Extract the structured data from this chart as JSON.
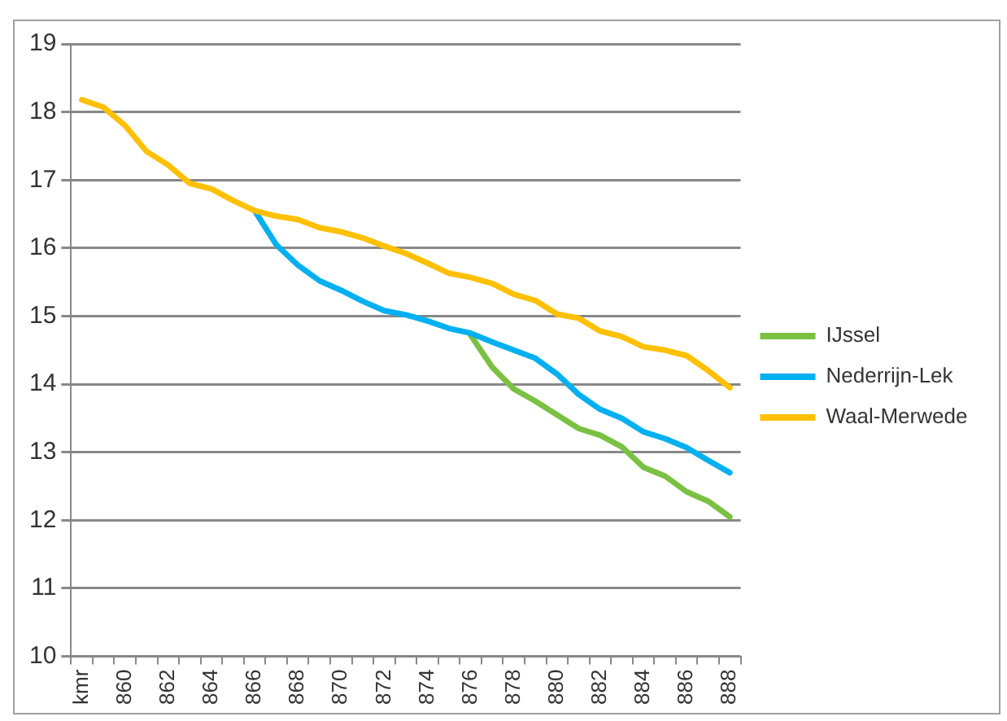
{
  "chart_data": {
    "type": "line",
    "categories": [
      "kmr",
      null,
      "860",
      null,
      "862",
      null,
      "864",
      null,
      "866",
      null,
      "868",
      null,
      "870",
      null,
      "872",
      null,
      "874",
      null,
      "876",
      null,
      "878",
      null,
      "880",
      null,
      "882",
      null,
      "884",
      null,
      "886",
      null,
      "888"
    ],
    "series": [
      {
        "name": "IJssel",
        "color": "#7ac143",
        "values": [
          null,
          null,
          null,
          null,
          null,
          null,
          null,
          null,
          null,
          null,
          null,
          null,
          null,
          null,
          null,
          null,
          null,
          null,
          14.72,
          14.25,
          13.93,
          13.75,
          13.55,
          13.35,
          13.25,
          13.08,
          12.78,
          12.65,
          12.42,
          12.28,
          12.05
        ]
      },
      {
        "name": "Nederrijn-Lek",
        "color": "#00b0f0",
        "values": [
          null,
          null,
          null,
          null,
          null,
          null,
          null,
          null,
          16.55,
          16.05,
          15.75,
          15.52,
          15.38,
          15.22,
          15.08,
          15.02,
          14.93,
          14.82,
          14.75,
          14.62,
          14.5,
          14.38,
          14.15,
          13.85,
          13.63,
          13.5,
          13.3,
          13.2,
          13.07,
          12.88,
          12.7
        ]
      },
      {
        "name": "Waal-Merwede",
        "color": "#ffc000",
        "values": [
          18.18,
          18.07,
          17.8,
          17.42,
          17.22,
          16.95,
          16.87,
          16.7,
          16.55,
          16.47,
          16.42,
          16.3,
          16.24,
          16.15,
          16.03,
          15.92,
          15.78,
          15.63,
          15.57,
          15.48,
          15.32,
          15.23,
          15.03,
          14.97,
          14.78,
          14.7,
          14.55,
          14.5,
          14.42,
          14.2,
          13.95
        ]
      }
    ],
    "ylim": [
      10,
      19
    ],
    "yticks": [
      10,
      11,
      12,
      13,
      14,
      15,
      16,
      17,
      18,
      19
    ],
    "grid": "y",
    "legend": "right",
    "marker": "none",
    "line_style": "solid"
  }
}
